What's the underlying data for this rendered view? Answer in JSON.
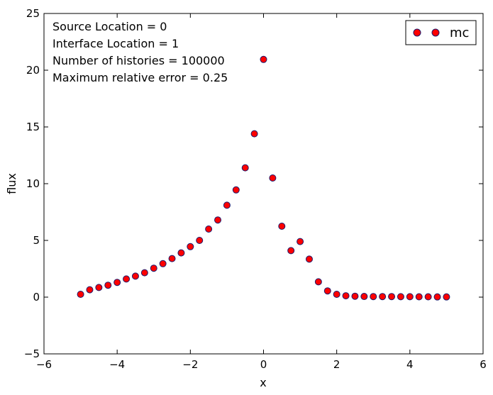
{
  "chart_data": {
    "type": "scatter",
    "xlabel": "x",
    "ylabel": "flux",
    "xlim": [
      -6,
      6
    ],
    "ylim": [
      -5,
      25
    ],
    "xticks": [
      -6,
      -4,
      -2,
      0,
      2,
      4,
      6
    ],
    "yticks": [
      -5,
      0,
      5,
      10,
      15,
      20,
      25
    ],
    "xtick_labels": [
      "−6",
      "−4",
      "−2",
      "0",
      "2",
      "4",
      "6"
    ],
    "ytick_labels": [
      "−5",
      "0",
      "5",
      "10",
      "15",
      "20",
      "25"
    ],
    "grid": false,
    "legend_position": "top-right",
    "annotations": [
      "Source Location = 0",
      "Interface Location = 1",
      "Number of histories = 100000",
      "Maximum relative error = 0.25"
    ],
    "series": [
      {
        "name": "mc",
        "color": "#ff0000",
        "edge_color": "#1a1a6e",
        "x": [
          -5.0,
          -4.75,
          -4.5,
          -4.25,
          -4.0,
          -3.75,
          -3.5,
          -3.25,
          -3.0,
          -2.75,
          -2.5,
          -2.25,
          -2.0,
          -1.75,
          -1.5,
          -1.25,
          -1.0,
          -0.75,
          -0.5,
          -0.25,
          0.0,
          0.25,
          0.5,
          0.75,
          1.0,
          1.25,
          1.5,
          1.75,
          2.0,
          2.25,
          2.5,
          2.75,
          3.0,
          3.25,
          3.5,
          3.75,
          4.0,
          4.25,
          4.5,
          4.75,
          5.0
        ],
        "y": [
          0.25,
          0.65,
          0.85,
          1.05,
          1.3,
          1.6,
          1.85,
          2.15,
          2.55,
          2.95,
          3.4,
          3.9,
          4.45,
          5.0,
          6.0,
          6.8,
          8.1,
          9.45,
          11.4,
          14.4,
          20.95,
          10.5,
          6.25,
          4.1,
          4.9,
          3.35,
          1.35,
          0.55,
          0.25,
          0.12,
          0.08,
          0.06,
          0.05,
          0.05,
          0.05,
          0.04,
          0.04,
          0.03,
          0.03,
          0.02,
          0.02
        ]
      }
    ]
  }
}
